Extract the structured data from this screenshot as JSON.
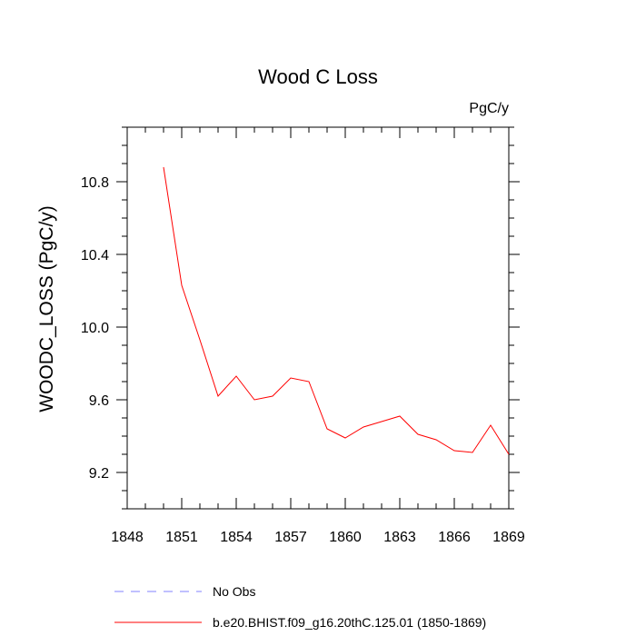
{
  "chart_data": {
    "type": "line",
    "title": "Wood C Loss",
    "units_label": "PgC/y",
    "xlabel": "",
    "ylabel": "WOODC_LOSS  (PgC/y)",
    "xlim": [
      1848,
      1869
    ],
    "ylim": [
      9.0,
      11.1
    ],
    "x_ticks": [
      1848,
      1851,
      1854,
      1857,
      1860,
      1863,
      1866,
      1869
    ],
    "y_ticks": [
      9.2,
      9.6,
      10.0,
      10.4,
      10.8
    ],
    "y_tick_labels": [
      "9.2",
      "9.6",
      "10.0",
      "10.4",
      "10.8"
    ],
    "series": [
      {
        "name": "b.e20.BHIST.f09_g16.20thC.125.01 (1850-1869)",
        "color": "#ff0000",
        "dash": "solid",
        "x": [
          1850,
          1851,
          1852,
          1853,
          1854,
          1855,
          1856,
          1857,
          1858,
          1859,
          1860,
          1861,
          1862,
          1863,
          1864,
          1865,
          1866,
          1867,
          1868,
          1869
        ],
        "values": [
          10.88,
          10.23,
          9.93,
          9.62,
          9.73,
          9.6,
          9.62,
          9.72,
          9.7,
          9.44,
          9.39,
          9.45,
          9.48,
          9.51,
          9.41,
          9.38,
          9.32,
          9.31,
          9.46,
          9.3
        ]
      }
    ],
    "legend": [
      {
        "label": "No Obs",
        "color": "#8080ff",
        "dash": "dashed"
      },
      {
        "label": "b.e20.BHIST.f09_g16.20thC.125.01 (1850-1869)",
        "color": "#ff0000",
        "dash": "solid"
      }
    ],
    "legend_position": "bottom-left"
  }
}
